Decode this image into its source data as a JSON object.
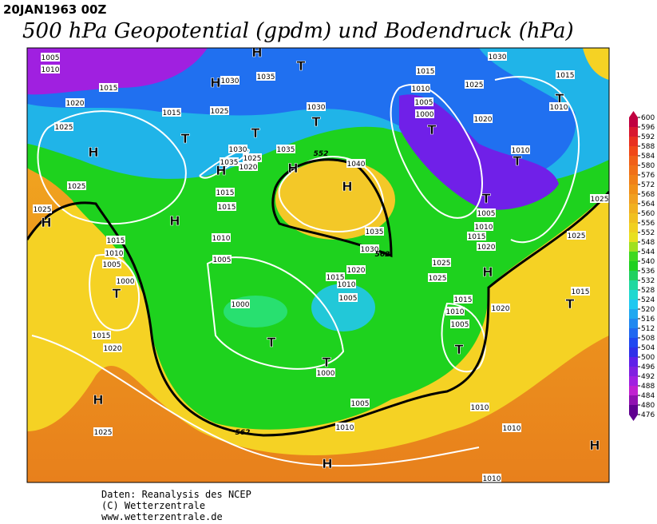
{
  "header": {
    "date": "20JAN1963 00Z",
    "title": "500 hPa Geopotential (gpdm) und Bodendruck (hPa)"
  },
  "colorbar": {
    "levels": [
      600,
      596,
      592,
      588,
      584,
      580,
      576,
      572,
      568,
      564,
      560,
      556,
      552,
      548,
      544,
      540,
      536,
      532,
      528,
      524,
      520,
      516,
      512,
      508,
      504,
      500,
      496,
      492,
      488,
      484,
      480,
      476
    ]
  },
  "map": {
    "pressure_centers": [
      "H",
      "H",
      "H",
      "H",
      "H",
      "H",
      "H",
      "H",
      "H",
      "H",
      "H",
      "H",
      "T",
      "T",
      "T",
      "T",
      "T",
      "T",
      "T",
      "T",
      "T",
      "T",
      "T",
      "T",
      "T"
    ],
    "isobar_labels": [
      "1005",
      "1010",
      "1015",
      "1020",
      "1025",
      "1015",
      "1030",
      "1035",
      "1025",
      "1030",
      "1030",
      "1025",
      "1020",
      "1035",
      "1035",
      "1040",
      "1015",
      "1015",
      "1025",
      "1025",
      "1010",
      "1015",
      "1010",
      "1005",
      "1000",
      "1005",
      "1000",
      "1015",
      "1020",
      "1035",
      "1030",
      "1020",
      "1015",
      "1010",
      "1005",
      "1000",
      "1005",
      "1010",
      "1015",
      "1010",
      "1005",
      "1000",
      "1020",
      "1025",
      "1030",
      "1015",
      "1010",
      "1010",
      "1005",
      "1010",
      "1015",
      "1020",
      "1025",
      "1025",
      "1025",
      "1025",
      "1015",
      "1010",
      "1005",
      "1020",
      "1015",
      "1010",
      "1010",
      "1010",
      "1025"
    ],
    "contour_labels": [
      "552",
      "562",
      "562"
    ]
  },
  "footer": {
    "lines": [
      "Daten: Reanalysis des NCEP",
      "(C) Wetterzentrale",
      "www.wetterzentrale.de"
    ]
  }
}
